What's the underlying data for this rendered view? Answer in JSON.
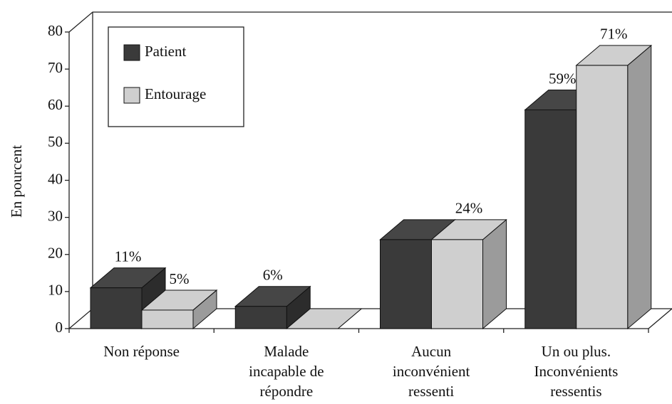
{
  "chart_data": {
    "type": "bar3d",
    "y_label": "En pourcent",
    "categories": [
      [
        "Non réponse"
      ],
      [
        "Malade",
        "incapable de",
        "répondre"
      ],
      [
        "Aucun",
        "inconvénient",
        "ressenti"
      ],
      [
        "Un ou plus.",
        "Inconvénients",
        "ressentis"
      ]
    ],
    "series": [
      {
        "name": "Patient",
        "color": "#3a3a3a",
        "values": [
          11,
          6,
          24,
          59
        ],
        "value_labels": [
          "11%",
          "6%",
          null,
          "59%"
        ]
      },
      {
        "name": "Entourage",
        "color": "#cfcfcf",
        "values": [
          5,
          0,
          24,
          71
        ],
        "value_labels": [
          "5%",
          null,
          "24%",
          "71%"
        ]
      }
    ],
    "ylim": [
      0,
      80
    ],
    "yticks": [
      0,
      10,
      20,
      30,
      40,
      50,
      60,
      70,
      80
    ],
    "legend": "top-left"
  }
}
